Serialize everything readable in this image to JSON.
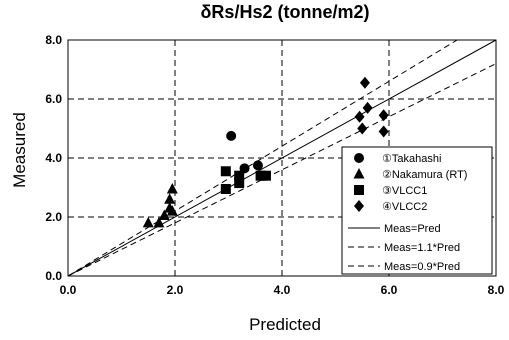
{
  "chart_data": {
    "type": "scatter",
    "title": "δRs/Hs2  (tonne/m2)",
    "xlabel": "Predicted",
    "ylabel": "Measured",
    "xlim": [
      0,
      8
    ],
    "ylim": [
      0,
      8
    ],
    "xticks": [
      "0.0",
      "2.0",
      "4.0",
      "6.0",
      "8.0"
    ],
    "yticks": [
      "0.0",
      "2.0",
      "4.0",
      "6.0",
      "8.0"
    ],
    "grid": true,
    "legend_position": "bottom-right",
    "series": [
      {
        "name": "①Takahashi",
        "marker": "circle",
        "points": [
          [
            3.05,
            4.75
          ],
          [
            3.3,
            3.65
          ],
          [
            3.55,
            3.75
          ],
          [
            3.2,
            3.3
          ]
        ]
      },
      {
        "name": "②Nakamura (RT)",
        "marker": "triangle",
        "points": [
          [
            1.5,
            1.8
          ],
          [
            1.7,
            1.8
          ],
          [
            1.8,
            2.05
          ],
          [
            1.9,
            2.3
          ],
          [
            1.9,
            2.6
          ],
          [
            1.95,
            2.95
          ],
          [
            1.95,
            2.2
          ]
        ]
      },
      {
        "name": "③VLCC1",
        "marker": "square",
        "points": [
          [
            2.95,
            3.55
          ],
          [
            2.95,
            2.95
          ],
          [
            3.2,
            3.15
          ],
          [
            3.2,
            3.4
          ],
          [
            3.6,
            3.4
          ],
          [
            3.7,
            3.4
          ]
        ]
      },
      {
        "name": "④VLCC2",
        "marker": "diamond",
        "points": [
          [
            5.55,
            6.55
          ],
          [
            5.6,
            5.7
          ],
          [
            5.45,
            5.4
          ],
          [
            5.5,
            5.0
          ],
          [
            5.9,
            5.45
          ],
          [
            5.9,
            4.9
          ]
        ]
      }
    ],
    "lines": [
      {
        "name": "Meas=Pred",
        "slope": 1.0,
        "style": "solid"
      },
      {
        "name": "Meas=1.1*Pred",
        "slope": 1.1,
        "style": "dashed"
      },
      {
        "name": "Meas=0.9*Pred",
        "slope": 0.9,
        "style": "dashed"
      }
    ]
  }
}
